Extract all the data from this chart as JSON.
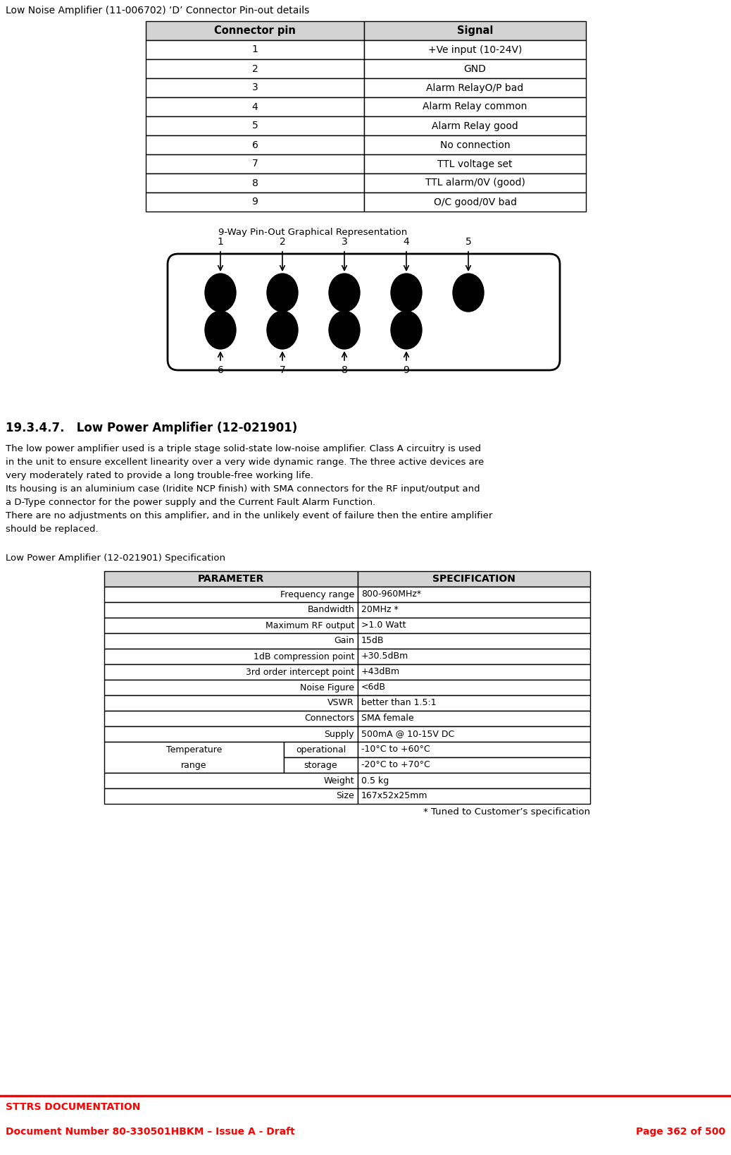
{
  "page_title": "Low Noise Amplifier (11-006702) ‘D’ Connector Pin-out details",
  "table1_headers": [
    "Connector pin",
    "Signal"
  ],
  "table1_rows": [
    [
      "1",
      "+Ve input (10-24V)"
    ],
    [
      "2",
      "GND"
    ],
    [
      "3",
      "Alarm RelayO/P bad"
    ],
    [
      "4",
      "Alarm Relay common"
    ],
    [
      "5",
      "Alarm Relay good"
    ],
    [
      "6",
      "No connection"
    ],
    [
      "7",
      "TTL voltage set"
    ],
    [
      "8",
      "TTL alarm/0V (good)"
    ],
    [
      "9",
      "O/C good/0V bad"
    ]
  ],
  "diagram_title": "9-Way Pin-Out Graphical Representation",
  "section_title": "19.3.4.7.   Low Power Amplifier (12-021901)",
  "body_lines": [
    "The low power amplifier used is a triple stage solid-state low-noise amplifier. Class A circuitry is used",
    "in the unit to ensure excellent linearity over a very wide dynamic range. The three active devices are",
    "very moderately rated to provide a long trouble-free working life.",
    "Its housing is an aluminium case (Iridite NCP finish) with SMA connectors for the RF input/output and",
    "a D-Type connector for the power supply and the Current Fault Alarm Function.",
    "There are no adjustments on this amplifier, and in the unlikely event of failure then the entire amplifier",
    "should be replaced."
  ],
  "spec_label": "Low Power Amplifier (12-021901) Specification",
  "table2_headers": [
    "PARAMETER",
    "SPECIFICATION"
  ],
  "table2_regular_rows": [
    [
      "Frequency range",
      "800-960MHz*"
    ],
    [
      "Bandwidth",
      "20MHz *"
    ],
    [
      "Maximum RF output",
      ">1.0 Watt"
    ],
    [
      "Gain",
      "15dB"
    ],
    [
      "1dB compression point",
      "+30.5dBm"
    ],
    [
      "3rd order intercept point",
      "+43dBm"
    ],
    [
      "Noise Figure",
      "<6dB"
    ],
    [
      "VSWR",
      "better than 1.5:1"
    ],
    [
      "Connectors",
      "SMA female"
    ],
    [
      "Supply",
      "500mA @ 10-15V DC"
    ]
  ],
  "temp_rows": [
    [
      "operational",
      "-10°C to +60°C"
    ],
    [
      "storage",
      "-20°C to +70°C"
    ]
  ],
  "table2_end_rows": [
    [
      "Weight",
      "0.5 kg"
    ],
    [
      "Size",
      "167x52x25mm"
    ]
  ],
  "table2_footnote": "* Tuned to Customer’s specification",
  "footer_line1": "STTRS DOCUMENTATION",
  "footer_line2": "Document Number 80-330501HBKM – Issue A - Draft",
  "footer_line3": "Page 362 of 500",
  "header_color": "#d3d3d3",
  "border_color": "#000000",
  "footer_color": "#ff0000",
  "bg_color": "#ffffff"
}
